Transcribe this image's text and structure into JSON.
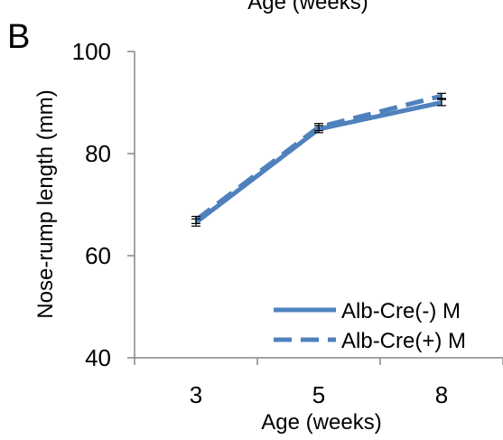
{
  "top_clipped_label": "Age (weeks)",
  "panel_label": "B",
  "chart_data": {
    "type": "line",
    "title": "",
    "xlabel": "Age (weeks)",
    "ylabel": "Nose-rump length (mm)",
    "categories": [
      "3",
      "5",
      "8"
    ],
    "ylim": [
      40,
      100
    ],
    "yticks": [
      "40",
      "60",
      "80",
      "100"
    ],
    "grid": false,
    "legend_position": "bottom-right",
    "series": [
      {
        "name": "Alb-Cre(-) M",
        "values": [
          66.5,
          84.8,
          90.0
        ],
        "error": [
          0.7,
          0.7,
          0.6
        ],
        "style": "solid",
        "color": "#4f81bd"
      },
      {
        "name": "Alb-Cre(+) M",
        "values": [
          67.0,
          85.2,
          91.3
        ],
        "error": [
          0.7,
          0.7,
          0.5
        ],
        "style": "dashed",
        "color": "#4f81bd"
      }
    ]
  }
}
